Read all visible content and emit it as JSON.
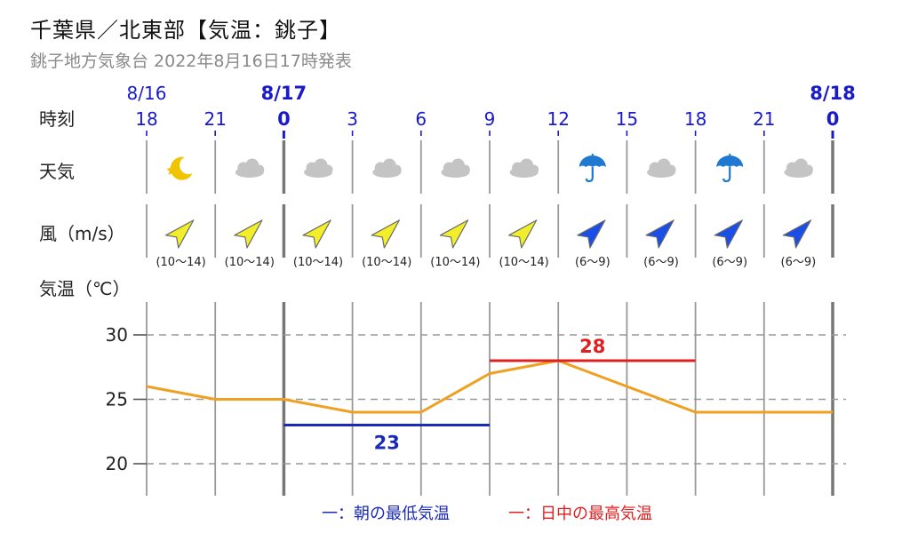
{
  "header": {
    "title": "千葉県／北東部【気温：銚子】",
    "subtitle": "銚子地方気象台 2022年8月16日17時発表"
  },
  "row_labels": {
    "time": "時刻",
    "weather": "天気",
    "wind": "風（m/s）",
    "temp": "気温（℃）"
  },
  "colors": {
    "date_blue": "#1a1acc",
    "temp_line": "#f0a020",
    "min_line": "#1a2ab8",
    "max_line": "#e02020",
    "wind_strong": "#f2ee2a",
    "wind_weak": "#1a4ee8",
    "umbrella": "#1f78d1",
    "moon": "#f0c400",
    "cloud": "#c4c4c4"
  },
  "chart_data": {
    "type": "line",
    "dates": [
      {
        "label": "8/16",
        "at_index": 0,
        "bold": false
      },
      {
        "label": "8/17",
        "at_index": 2,
        "bold": true
      },
      {
        "label": "8/18",
        "at_index": 10,
        "bold": true
      }
    ],
    "hours": [
      {
        "label": "18",
        "bold": false
      },
      {
        "label": "21",
        "bold": false
      },
      {
        "label": "0",
        "bold": true
      },
      {
        "label": "3",
        "bold": false
      },
      {
        "label": "6",
        "bold": false
      },
      {
        "label": "9",
        "bold": false
      },
      {
        "label": "12",
        "bold": false
      },
      {
        "label": "15",
        "bold": false
      },
      {
        "label": "18",
        "bold": false
      },
      {
        "label": "21",
        "bold": false
      },
      {
        "label": "0",
        "bold": true
      }
    ],
    "weather": [
      "moon-icon",
      "cloud-icon",
      "cloud-icon",
      "cloud-icon",
      "cloud-icon",
      "cloud-icon",
      "umbrella-icon",
      "cloud-icon",
      "umbrella-icon",
      "cloud-icon"
    ],
    "wind": [
      {
        "range": "(10～14)",
        "strength": "strong"
      },
      {
        "range": "(10～14)",
        "strength": "strong"
      },
      {
        "range": "(10～14)",
        "strength": "strong"
      },
      {
        "range": "(10～14)",
        "strength": "strong"
      },
      {
        "range": "(10～14)",
        "strength": "strong"
      },
      {
        "range": "(10～14)",
        "strength": "strong"
      },
      {
        "range": "(6～9)",
        "strength": "weak"
      },
      {
        "range": "(6～9)",
        "strength": "weak"
      },
      {
        "range": "(6～9)",
        "strength": "weak"
      },
      {
        "range": "(6～9)",
        "strength": "weak"
      }
    ],
    "temperature": [
      26,
      25,
      25,
      24,
      24,
      27,
      28,
      26,
      24,
      24,
      24
    ],
    "yticks": [
      30,
      25,
      20
    ],
    "ylim": [
      17.5,
      32.5
    ],
    "grid": true,
    "min_temp": {
      "value": 23,
      "label": "23",
      "from_index": 2,
      "to_index": 5
    },
    "max_temp": {
      "value": 28,
      "label": "28",
      "from_index": 5,
      "to_index": 8
    },
    "legend": {
      "min_label": "一：朝の最低気温",
      "max_label": "一：日中の最高気温",
      "placement": "bottom"
    }
  }
}
